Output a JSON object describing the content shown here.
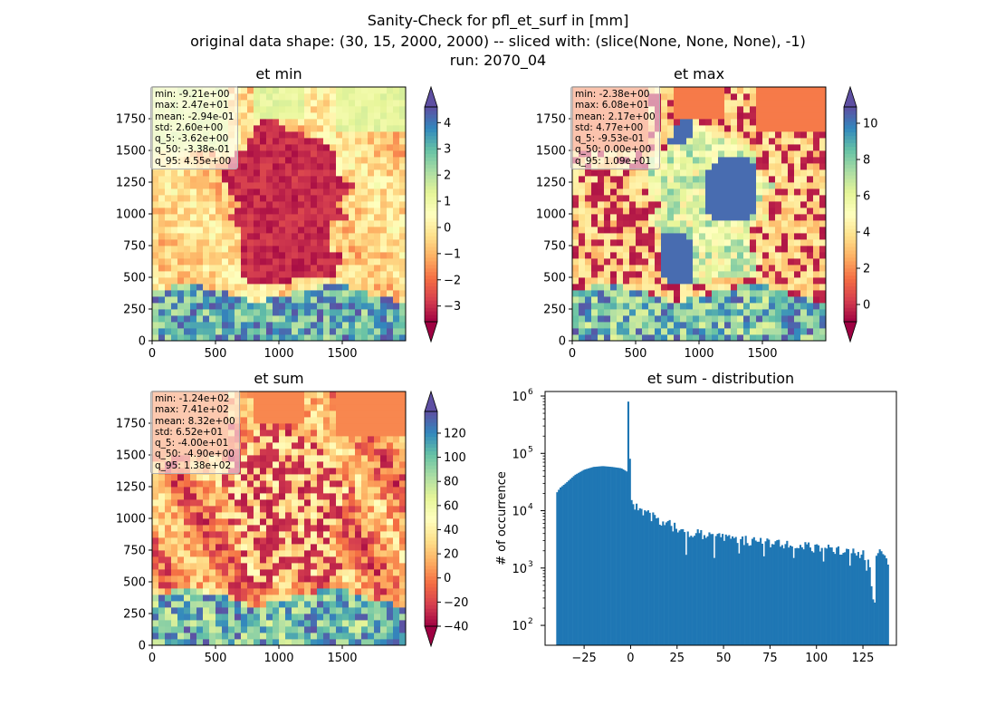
{
  "figure": {
    "title_lines": [
      "Sanity-Check for pfl_et_surf in [mm]",
      "original data shape: (30, 15, 2000, 2000) -- sliced with: (slice(None, None, None), -1)",
      "run: 2070_04"
    ]
  },
  "colors": {
    "colormap": [
      "#9e0142",
      "#d53e4f",
      "#f46d43",
      "#fdae61",
      "#fee08b",
      "#ffffbf",
      "#e6f598",
      "#abdda4",
      "#66c2a5",
      "#3288bd",
      "#5e4fa2"
    ],
    "hist_bar": "#1f77b4"
  },
  "chart_data": [
    {
      "type": "heatmap",
      "title": "et min",
      "xlim": [
        0,
        2000
      ],
      "ylim": [
        0,
        2000
      ],
      "xticks": [
        "0",
        "500",
        "1000",
        "1500"
      ],
      "yticks": [
        "0",
        "250",
        "500",
        "750",
        "1000",
        "1250",
        "1500",
        "1750"
      ],
      "colorbar": {
        "min": -3.6,
        "max": 4.6,
        "ticks": [
          -3,
          -2,
          -1,
          0,
          1,
          2,
          3,
          4
        ],
        "tick_labels": [
          "−3",
          "−2",
          "−1",
          "0",
          "1",
          "2",
          "3",
          "4"
        ]
      },
      "stats": [
        "min: -9.21e+00",
        "max: 2.47e+01",
        "mean: -2.94e-01",
        "std: 2.60e+00",
        "q_5: -3.62e+00",
        "q_50: -3.38e-01",
        "q_95: 4.55e+00"
      ]
    },
    {
      "type": "heatmap",
      "title": "et max",
      "xlim": [
        0,
        2000
      ],
      "ylim": [
        0,
        2000
      ],
      "xticks": [
        "0",
        "500",
        "1000",
        "1500"
      ],
      "yticks": [
        "0",
        "250",
        "500",
        "750",
        "1000",
        "1250",
        "1500",
        "1750"
      ],
      "colorbar": {
        "min": -0.95,
        "max": 10.9,
        "ticks": [
          0,
          2,
          4,
          6,
          8,
          10
        ],
        "tick_labels": [
          "0",
          "2",
          "4",
          "6",
          "8",
          "10"
        ]
      },
      "stats": [
        "min: -2.38e+00",
        "max: 6.08e+01",
        "mean: 2.17e+00",
        "std: 4.77e+00",
        "q_5: -9.53e-01",
        "q_50: 0.00e+00",
        "q_95: 1.09e+01"
      ]
    },
    {
      "type": "heatmap",
      "title": "et sum",
      "xlim": [
        0,
        2000
      ],
      "ylim": [
        0,
        2000
      ],
      "xticks": [
        "0",
        "500",
        "1000",
        "1500"
      ],
      "yticks": [
        "0",
        "250",
        "500",
        "750",
        "1000",
        "1250",
        "1500",
        "1750"
      ],
      "colorbar": {
        "min": -40,
        "max": 138,
        "ticks": [
          -40,
          -20,
          0,
          20,
          40,
          60,
          80,
          100,
          120
        ],
        "tick_labels": [
          "−40",
          "−20",
          "0",
          "20",
          "40",
          "60",
          "80",
          "100",
          "120"
        ]
      },
      "stats": [
        "min: -1.24e+02",
        "max: 7.41e+02",
        "mean: 8.32e+00",
        "std: 6.52e+01",
        "q_5: -4.00e+01",
        "q_50: -4.90e+00",
        "q_95: 1.38e+02"
      ]
    },
    {
      "type": "bar",
      "title": "et sum - distribution",
      "ylabel": "# of occurrence",
      "y_scale": "log",
      "xlim": [
        -46,
        143
      ],
      "ylim": [
        45,
        1200000
      ],
      "xticks": [
        -25,
        0,
        25,
        50,
        75,
        100,
        125
      ],
      "xtick_labels": [
        "−25",
        "0",
        "25",
        "50",
        "75",
        "100",
        "125"
      ],
      "yticks": [
        100,
        1000,
        10000,
        100000,
        1000000
      ],
      "ytick_labels": [
        "10^2",
        "10^3",
        "10^4",
        "10^5",
        "10^6"
      ],
      "bins": {
        "start": -40,
        "width": 0.89
      },
      "envelope": [
        [
          -40,
          20000
        ],
        [
          -38,
          25000
        ],
        [
          -35,
          30000
        ],
        [
          -30,
          42000
        ],
        [
          -25,
          52000
        ],
        [
          -20,
          58000
        ],
        [
          -15,
          60000
        ],
        [
          -10,
          58000
        ],
        [
          -5,
          55000
        ],
        [
          -2,
          48000
        ],
        [
          -1,
          800000
        ],
        [
          0,
          18000
        ],
        [
          1,
          13000
        ],
        [
          3,
          13000
        ],
        [
          5,
          11000
        ],
        [
          10,
          8500
        ],
        [
          15,
          7000
        ],
        [
          20,
          6000
        ],
        [
          25,
          5000
        ],
        [
          30,
          4200
        ],
        [
          40,
          3800
        ],
        [
          50,
          3400
        ],
        [
          60,
          3100
        ],
        [
          70,
          2800
        ],
        [
          80,
          2700
        ],
        [
          90,
          2500
        ],
        [
          100,
          2300
        ],
        [
          110,
          2100
        ],
        [
          120,
          2000
        ],
        [
          125,
          1800
        ],
        [
          128,
          1500
        ],
        [
          131,
          250
        ],
        [
          132,
          1800
        ],
        [
          135,
          2000
        ],
        [
          138,
          1300
        ]
      ],
      "dips": [
        [
          30,
          1700
        ],
        [
          45,
          1500
        ],
        [
          58,
          1800
        ],
        [
          72,
          1600
        ],
        [
          88,
          1500
        ],
        [
          104,
          1300
        ],
        [
          118,
          1100
        ],
        [
          127,
          900
        ]
      ]
    }
  ]
}
